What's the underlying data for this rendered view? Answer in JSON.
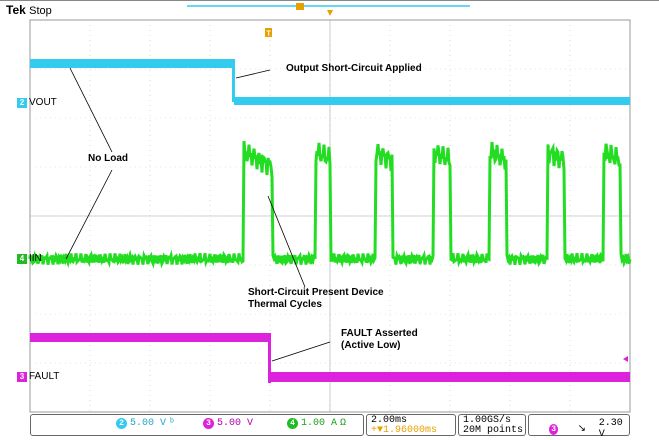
{
  "header": {
    "brand": "Tek",
    "status": "Stop"
  },
  "channels": {
    "vout": {
      "num": "2",
      "label": "VOUT",
      "color": "#33ccee"
    },
    "iin": {
      "num": "4",
      "label": "IIN",
      "color": "#22dd22"
    },
    "fault": {
      "num": "3",
      "label": "FAULT",
      "color": "#dd22dd"
    }
  },
  "annotations": {
    "short_applied": "Output Short-Circuit Applied",
    "no_load": "No Load",
    "short_present_1": "Short-Circuit Present Device",
    "short_present_2": "Thermal Cycles",
    "fault_asserted_1": "FAULT Asserted",
    "fault_asserted_2": "(Active Low)"
  },
  "bottom": {
    "ch2_num": "2",
    "ch2_scale": "5.00 V",
    "ch3_num": "3",
    "ch3_scale": "5.00 V",
    "ch4_num": "4",
    "ch4_scale": "1.00 A",
    "ch4_unit": "Ω",
    "timebase": "2.00ms",
    "trigger_pos": "+▼1.96000ms",
    "sample_rate": "1.00GS/s",
    "record_length": "20M points",
    "trig_src": "3",
    "trig_slope": "↘",
    "trig_level": "2.30 V"
  },
  "markers": {
    "trigger_t": "T"
  }
}
